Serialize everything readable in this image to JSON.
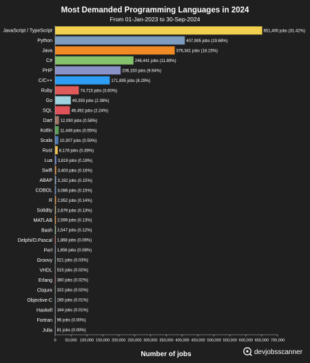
{
  "chart_data": {
    "type": "bar",
    "orientation": "horizontal",
    "title": "Most Demanded Programming Languages in 2024",
    "subtitle": "From 01-Jan-2023 to 30-Sep-2024",
    "xlabel": "Number of jobs",
    "ylabel": "",
    "xlim": [
      0,
      700000
    ],
    "x_ticks": [
      0,
      50000,
      100000,
      150000,
      200000,
      250000,
      300000,
      350000,
      400000,
      450000,
      500000,
      550000,
      600000,
      650000,
      700000
    ],
    "x_tick_labels": [
      "0",
      "50,000",
      "100,000",
      "150,000",
      "200,000",
      "250,000",
      "300,000",
      "350,000",
      "400,000",
      "450,000",
      "500,000",
      "550,000",
      "600,000",
      "650,000",
      "700,000"
    ],
    "grid": false,
    "bars": [
      {
        "category": "JavaScript / TypeScript",
        "value": 651400,
        "label": "651,400 jobs (31.42%)",
        "color": "#f2d04f"
      },
      {
        "category": "Python",
        "value": 407995,
        "label": "407,995 jobs (19.68%)",
        "color": "#7d9cc0"
      },
      {
        "category": "Java",
        "value": 376341,
        "label": "376,341 jobs (18.15%)",
        "color": "#f08a24"
      },
      {
        "category": "C#",
        "value": 246441,
        "label": "246,441 jobs (11.89%)",
        "color": "#86c36d"
      },
      {
        "category": "PHP",
        "value": 206150,
        "label": "206,150 jobs (9.94%)",
        "color": "#8a93c9"
      },
      {
        "category": "C/C++",
        "value": 171895,
        "label": "171,895 jobs (8.29%)",
        "color": "#2e9df4"
      },
      {
        "category": "Ruby",
        "value": 74715,
        "label": "74,715 jobs (3.60%)",
        "color": "#e05a5a"
      },
      {
        "category": "Go",
        "value": 49393,
        "label": "49,393 jobs (2.38%)",
        "color": "#9ed3df"
      },
      {
        "category": "SQL",
        "value": 46492,
        "label": "46,492 jobs (2.24%)",
        "color": "#e0525a"
      },
      {
        "category": "Dart",
        "value": 12090,
        "label": "12,090 jobs (0.58%)",
        "color": "#a0786a"
      },
      {
        "category": "Kotlin",
        "value": 11449,
        "label": "11,449 jobs (0.55%)",
        "color": "#5aa05a"
      },
      {
        "category": "Scala",
        "value": 10307,
        "label": "10,307 jobs (0.50%)",
        "color": "#4e79b5"
      },
      {
        "category": "Rust",
        "value": 8178,
        "label": "8,178 jobs (0.39%)",
        "color": "#f2c04f"
      },
      {
        "category": "Lua",
        "value": 3819,
        "label": "3,819 jobs (0.18%)",
        "color": "#6b7fd7"
      },
      {
        "category": "Swift",
        "value": 3403,
        "label": "3,403 jobs (0.16%)",
        "color": "#f08a24"
      },
      {
        "category": "ABAP",
        "value": 3192,
        "label": "3,192 jobs (0.15%)",
        "color": "#7d9cc0"
      },
      {
        "category": "COBOL",
        "value": 3086,
        "label": "3,086 jobs (0.15%)",
        "color": "#4e79b5"
      },
      {
        "category": "R",
        "value": 2952,
        "label": "2,952 jobs (0.14%)",
        "color": "#f08a24"
      },
      {
        "category": "Solidity",
        "value": 2679,
        "label": "2,679 jobs (0.13%)",
        "color": "#c0a060"
      },
      {
        "category": "MATLAB",
        "value": 2599,
        "label": "2,599 jobs (0.13%)",
        "color": "#f08a24"
      },
      {
        "category": "Bash",
        "value": 2547,
        "label": "2,547 jobs (0.12%)",
        "color": "#86c36d"
      },
      {
        "category": "Delphi/O.Pascal",
        "value": 1868,
        "label": "1,868 jobs (0.09%)",
        "color": "#e05a5a"
      },
      {
        "category": "Perl",
        "value": 1656,
        "label": "1,656 jobs (0.08%)",
        "color": "#7d9cc0"
      },
      {
        "category": "Groovy",
        "value": 521,
        "label": "521 jobs (0.03%)",
        "color": "#9ed3df"
      },
      {
        "category": "VHDL",
        "value": 515,
        "label": "515 jobs (0.02%)",
        "color": "#a0786a"
      },
      {
        "category": "Erlang",
        "value": 380,
        "label": "380 jobs (0.02%)",
        "color": "#e05a5a"
      },
      {
        "category": "Clojure",
        "value": 322,
        "label": "322 jobs (0.02%)",
        "color": "#86c36d"
      },
      {
        "category": "Objective-C",
        "value": 285,
        "label": "285 jobs (0.01%)",
        "color": "#7d9cc0"
      },
      {
        "category": "Haskell",
        "value": 164,
        "label": "164 jobs (0.01%)",
        "color": "#8a93c9"
      },
      {
        "category": "Fortran",
        "value": 96,
        "label": "96 jobs (0.00%)",
        "color": "#9ed3df"
      },
      {
        "category": "Julia",
        "value": 81,
        "label": "81 jobs (0.00%)",
        "color": "#8a93c9"
      }
    ]
  },
  "brand": {
    "name": "devjobsscanner",
    "icon": "devjobsscanner-logo-icon"
  },
  "colors": {
    "background": "#1f1f1f",
    "text": "#ffffff",
    "axis": "#cccccc"
  }
}
